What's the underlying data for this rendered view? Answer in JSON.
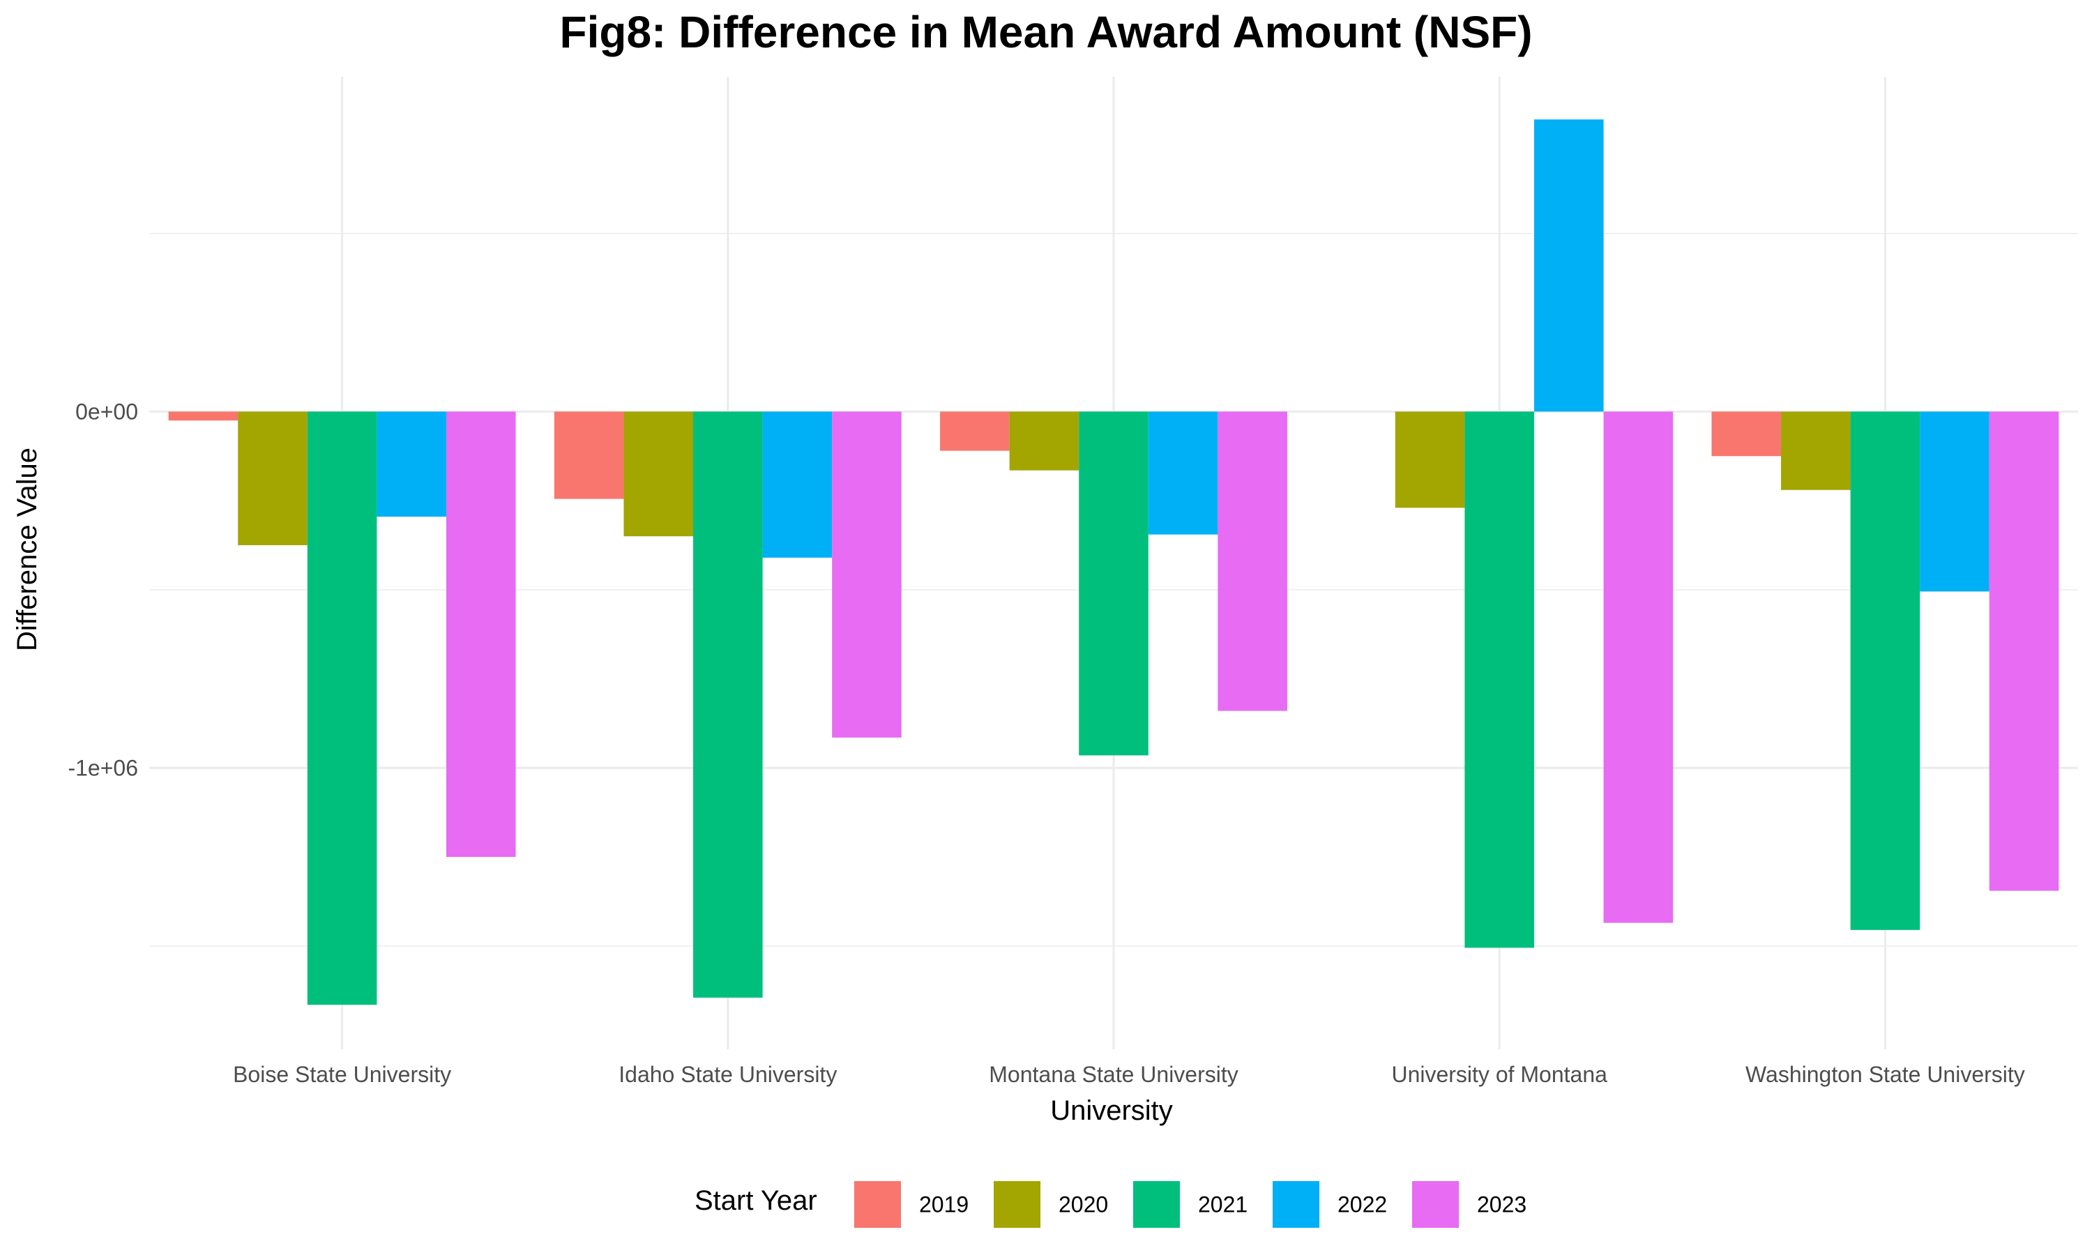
{
  "chart_data": {
    "type": "bar",
    "title": "Fig8: Difference in Mean Award Amount (NSF)",
    "xlabel": "University",
    "ylabel": "Difference Value",
    "categories": [
      "Boise State University",
      "Idaho State University",
      "Montana State University",
      "University of Montana",
      "Washington State University"
    ],
    "series": [
      {
        "name": "2019",
        "color": "#F8766D",
        "values": [
          -25000,
          -245000,
          -110000,
          null,
          -125000
        ]
      },
      {
        "name": "2020",
        "color": "#A3A500",
        "values": [
          -375000,
          -350000,
          -165000,
          -270000,
          -220000
        ]
      },
      {
        "name": "2021",
        "color": "#00BF7D",
        "values": [
          -1665000,
          -1645000,
          -965000,
          -1505000,
          -1455000
        ]
      },
      {
        "name": "2022",
        "color": "#00B0F6",
        "values": [
          -295000,
          -410000,
          -345000,
          820000,
          -505000
        ]
      },
      {
        "name": "2023",
        "color": "#E76BF3",
        "values": [
          -1250000,
          -915000,
          -840000,
          -1435000,
          -1345000
        ]
      }
    ],
    "yticks": [
      0,
      -1000000
    ],
    "ytick_labels": [
      "0e+00",
      "-1e+06"
    ],
    "ylim": [
      -1790000,
      940000
    ],
    "legend": {
      "title": "Start Year",
      "position": "bottom"
    },
    "grid": true
  }
}
